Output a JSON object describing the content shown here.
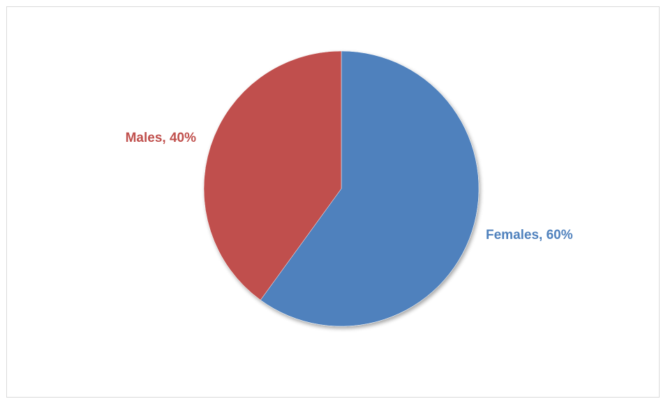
{
  "chart_data": {
    "type": "pie",
    "title": "",
    "categories": [
      "Females",
      "Males"
    ],
    "values": [
      60,
      40
    ],
    "value_unit": "%",
    "colors": [
      "#4F81BD",
      "#C0504D"
    ],
    "data_labels": [
      "Females, 60%",
      "Males, 40%"
    ],
    "start_angle_deg": 0,
    "direction": "clockwise",
    "legend": "none"
  }
}
